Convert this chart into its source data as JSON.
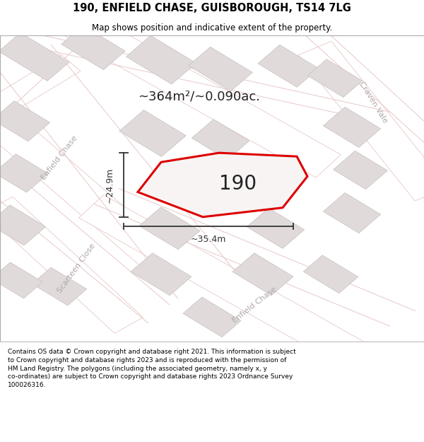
{
  "title_line1": "190, ENFIELD CHASE, GUISBOROUGH, TS14 7LG",
  "title_line2": "Map shows position and indicative extent of the property.",
  "footer_text": "Contains OS data © Crown copyright and database right 2021. This information is subject to Crown copyright and database rights 2023 and is reproduced with the permission of HM Land Registry. The polygons (including the associated geometry, namely x, y co-ordinates) are subject to Crown copyright and database rights 2023 Ordnance Survey 100026316.",
  "map_bg": "#f2eded",
  "road_fill": "#ffffff",
  "road_edge": "#e8c8c8",
  "building_fill": "#e0dada",
  "building_edge": "#c8c0c0",
  "prop_fill": "#f8f4f4",
  "prop_edge": "#dd0000",
  "label_190": "190",
  "area_text": "~364m²/~0.090ac.",
  "dim_h_text": "~24.9m",
  "dim_w_text": "~35.4m",
  "road_label_color": "#b0a8a8",
  "dim_color": "#333333",
  "label_color": "#222222"
}
